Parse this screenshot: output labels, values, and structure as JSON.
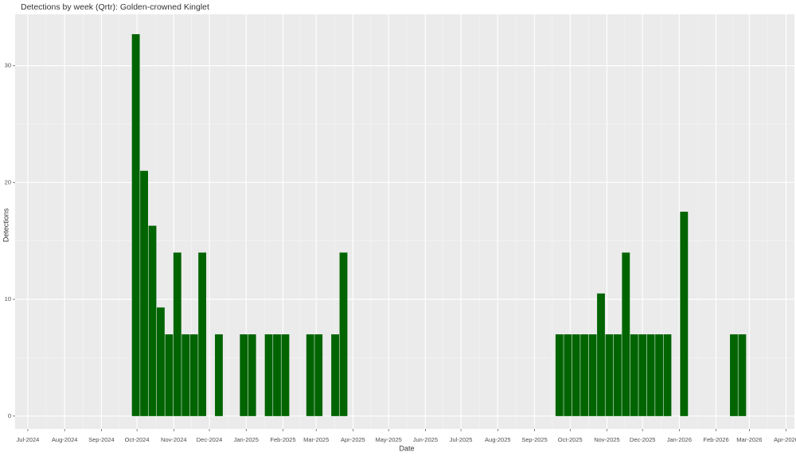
{
  "chart_data": {
    "type": "bar",
    "title": "Detections by week (Qrtr): Golden-crowned Kinglet",
    "x_label": "Date",
    "y_label": "Detections",
    "x": [
      91,
      98,
      105,
      112,
      119,
      126,
      133,
      140,
      147,
      161,
      182,
      189,
      203,
      210,
      217,
      238,
      245,
      259,
      266,
      448,
      455,
      462,
      469,
      476,
      483,
      490,
      497,
      504,
      511,
      518,
      525,
      532,
      539,
      553,
      595,
      602
    ],
    "values": [
      32.7,
      21,
      16.3,
      9.3,
      7,
      14,
      7,
      7,
      14,
      7,
      7,
      7,
      7,
      7,
      7,
      7,
      7,
      7,
      14,
      7,
      7,
      7,
      7,
      7,
      10.5,
      7,
      7,
      14,
      7,
      7,
      7,
      7,
      7,
      17.5,
      7,
      7
    ],
    "color": "#006400",
    "xlim": [
      -10.7,
      646
    ],
    "ylim": [
      -1.1,
      34.4
    ],
    "xticks": [
      {
        "value": 0,
        "label": "Jul-2024"
      },
      {
        "value": 31,
        "label": "Aug-2024"
      },
      {
        "value": 62,
        "label": "Sep-2024"
      },
      {
        "value": 92,
        "label": "Oct-2024"
      },
      {
        "value": 123,
        "label": "Nov-2024"
      },
      {
        "value": 153,
        "label": "Dec-2024"
      },
      {
        "value": 184,
        "label": "Jan-2025"
      },
      {
        "value": 215,
        "label": "Feb-2025"
      },
      {
        "value": 243,
        "label": "Mar-2025"
      },
      {
        "value": 274,
        "label": "Apr-2025"
      },
      {
        "value": 304,
        "label": "May-2025"
      },
      {
        "value": 335,
        "label": "Jun-2025"
      },
      {
        "value": 365,
        "label": "Jul-2025"
      },
      {
        "value": 396,
        "label": "Aug-2025"
      },
      {
        "value": 427,
        "label": "Sep-2025"
      },
      {
        "value": 457,
        "label": "Oct-2025"
      },
      {
        "value": 488,
        "label": "Nov-2025"
      },
      {
        "value": 518,
        "label": "Dec-2025"
      },
      {
        "value": 549,
        "label": "Jan-2026"
      },
      {
        "value": 580,
        "label": "Feb-2026"
      },
      {
        "value": 608,
        "label": "Mar-2026"
      },
      {
        "value": 639,
        "label": "Apr-2026"
      }
    ],
    "yticks": [
      0,
      10,
      20,
      30
    ],
    "grid": true
  }
}
